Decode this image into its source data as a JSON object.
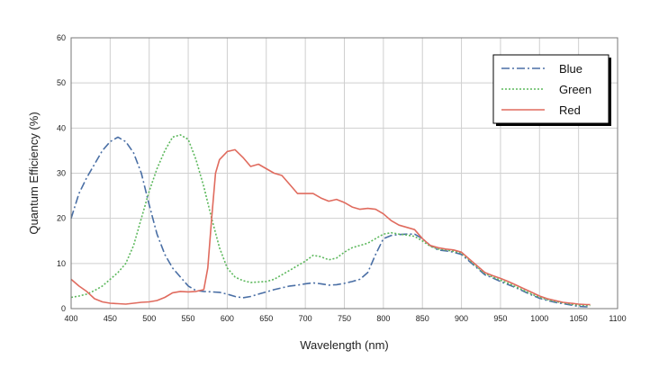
{
  "chart_data": {
    "type": "line",
    "title": "",
    "xlabel": "Wavelength (nm)",
    "ylabel": "Quantum Efficiency (%)",
    "xlim": [
      400,
      1100
    ],
    "ylim": [
      0,
      60
    ],
    "xticks": [
      400,
      450,
      500,
      550,
      600,
      650,
      700,
      750,
      800,
      850,
      900,
      950,
      1000,
      1050,
      1100
    ],
    "yticks": [
      0,
      10,
      20,
      30,
      40,
      50,
      60
    ],
    "grid": true,
    "legend_position": "top-right",
    "series": [
      {
        "name": "Blue",
        "color": "#4a6fa5",
        "line_style": "dash-dot",
        "points": [
          [
            400,
            20
          ],
          [
            410,
            25.5
          ],
          [
            420,
            29
          ],
          [
            430,
            32
          ],
          [
            440,
            35
          ],
          [
            450,
            37
          ],
          [
            460,
            38
          ],
          [
            470,
            37
          ],
          [
            480,
            34.5
          ],
          [
            490,
            30
          ],
          [
            500,
            23
          ],
          [
            510,
            16.5
          ],
          [
            520,
            12
          ],
          [
            530,
            9
          ],
          [
            540,
            7
          ],
          [
            550,
            5
          ],
          [
            560,
            4
          ],
          [
            570,
            3.8
          ],
          [
            580,
            3.7
          ],
          [
            590,
            3.6
          ],
          [
            600,
            3.2
          ],
          [
            610,
            2.7
          ],
          [
            620,
            2.4
          ],
          [
            630,
            2.7
          ],
          [
            640,
            3.2
          ],
          [
            650,
            3.7
          ],
          [
            660,
            4.2
          ],
          [
            670,
            4.6
          ],
          [
            680,
            5
          ],
          [
            690,
            5.2
          ],
          [
            700,
            5.5
          ],
          [
            710,
            5.7
          ],
          [
            720,
            5.5
          ],
          [
            730,
            5.2
          ],
          [
            740,
            5.3
          ],
          [
            750,
            5.6
          ],
          [
            760,
            6
          ],
          [
            770,
            6.5
          ],
          [
            780,
            8
          ],
          [
            790,
            12
          ],
          [
            800,
            15.5
          ],
          [
            810,
            16.2
          ],
          [
            820,
            16.4
          ],
          [
            830,
            16.5
          ],
          [
            840,
            16.5
          ],
          [
            850,
            15.5
          ],
          [
            860,
            14
          ],
          [
            870,
            13
          ],
          [
            880,
            12.8
          ],
          [
            890,
            12.5
          ],
          [
            900,
            12
          ],
          [
            910,
            10.5
          ],
          [
            920,
            9
          ],
          [
            930,
            7.5
          ],
          [
            940,
            6.8
          ],
          [
            950,
            6
          ],
          [
            960,
            5.3
          ],
          [
            970,
            4.6
          ],
          [
            980,
            3.8
          ],
          [
            990,
            3
          ],
          [
            1000,
            2.3
          ],
          [
            1010,
            1.8
          ],
          [
            1020,
            1.4
          ],
          [
            1030,
            1.1
          ],
          [
            1040,
            0.8
          ],
          [
            1050,
            0.5
          ],
          [
            1060,
            0.4
          ],
          [
            1065,
            0.4
          ]
        ]
      },
      {
        "name": "Green",
        "color": "#5cb85c",
        "line_style": "dotted",
        "points": [
          [
            400,
            2.5
          ],
          [
            410,
            2.8
          ],
          [
            420,
            3.2
          ],
          [
            430,
            4
          ],
          [
            440,
            5
          ],
          [
            450,
            6.5
          ],
          [
            460,
            8
          ],
          [
            470,
            10
          ],
          [
            480,
            14
          ],
          [
            490,
            20
          ],
          [
            500,
            26
          ],
          [
            510,
            31
          ],
          [
            520,
            35
          ],
          [
            530,
            38
          ],
          [
            540,
            38.5
          ],
          [
            550,
            37.5
          ],
          [
            560,
            33
          ],
          [
            570,
            27
          ],
          [
            580,
            20
          ],
          [
            590,
            13.5
          ],
          [
            600,
            9
          ],
          [
            610,
            7
          ],
          [
            620,
            6.2
          ],
          [
            630,
            5.8
          ],
          [
            640,
            5.9
          ],
          [
            650,
            6
          ],
          [
            660,
            6.5
          ],
          [
            670,
            7.5
          ],
          [
            680,
            8.5
          ],
          [
            690,
            9.5
          ],
          [
            700,
            10.5
          ],
          [
            710,
            11.8
          ],
          [
            720,
            11.5
          ],
          [
            730,
            10.8
          ],
          [
            740,
            11.2
          ],
          [
            750,
            12.5
          ],
          [
            760,
            13.5
          ],
          [
            770,
            14
          ],
          [
            780,
            14.5
          ],
          [
            790,
            15.5
          ],
          [
            800,
            16.5
          ],
          [
            810,
            16.8
          ],
          [
            820,
            16.5
          ],
          [
            830,
            16.3
          ],
          [
            840,
            16
          ],
          [
            850,
            15
          ],
          [
            860,
            13.8
          ],
          [
            870,
            13.2
          ],
          [
            880,
            13
          ],
          [
            890,
            12.7
          ],
          [
            900,
            12.3
          ],
          [
            910,
            10.8
          ],
          [
            920,
            9.2
          ],
          [
            930,
            7.8
          ],
          [
            940,
            7
          ],
          [
            950,
            6.3
          ],
          [
            960,
            5.6
          ],
          [
            970,
            4.8
          ],
          [
            980,
            4
          ],
          [
            990,
            3.2
          ],
          [
            1000,
            2.5
          ],
          [
            1010,
            2
          ],
          [
            1020,
            1.6
          ],
          [
            1030,
            1.3
          ],
          [
            1040,
            1
          ],
          [
            1050,
            0.8
          ],
          [
            1060,
            0.7
          ],
          [
            1065,
            0.7
          ]
        ]
      },
      {
        "name": "Red",
        "color": "#e06b5e",
        "line_style": "solid",
        "points": [
          [
            400,
            6.5
          ],
          [
            410,
            5
          ],
          [
            420,
            3.8
          ],
          [
            430,
            2.2
          ],
          [
            440,
            1.5
          ],
          [
            450,
            1.2
          ],
          [
            460,
            1.1
          ],
          [
            470,
            1
          ],
          [
            480,
            1.2
          ],
          [
            490,
            1.4
          ],
          [
            500,
            1.5
          ],
          [
            510,
            1.8
          ],
          [
            520,
            2.5
          ],
          [
            530,
            3.5
          ],
          [
            540,
            3.8
          ],
          [
            550,
            3.7
          ],
          [
            560,
            3.8
          ],
          [
            570,
            4.2
          ],
          [
            575,
            9
          ],
          [
            580,
            20
          ],
          [
            585,
            30
          ],
          [
            590,
            33
          ],
          [
            600,
            34.8
          ],
          [
            610,
            35.2
          ],
          [
            620,
            33.5
          ],
          [
            630,
            31.5
          ],
          [
            640,
            32
          ],
          [
            650,
            31
          ],
          [
            660,
            30
          ],
          [
            670,
            29.5
          ],
          [
            680,
            27.5
          ],
          [
            690,
            25.5
          ],
          [
            700,
            25.5
          ],
          [
            710,
            25.5
          ],
          [
            720,
            24.5
          ],
          [
            730,
            23.8
          ],
          [
            740,
            24.2
          ],
          [
            750,
            23.5
          ],
          [
            760,
            22.5
          ],
          [
            770,
            22
          ],
          [
            780,
            22.2
          ],
          [
            790,
            22
          ],
          [
            800,
            21
          ],
          [
            810,
            19.5
          ],
          [
            820,
            18.5
          ],
          [
            830,
            18
          ],
          [
            840,
            17.5
          ],
          [
            850,
            15.5
          ],
          [
            860,
            14
          ],
          [
            870,
            13.5
          ],
          [
            880,
            13.2
          ],
          [
            890,
            13
          ],
          [
            900,
            12.5
          ],
          [
            910,
            11
          ],
          [
            920,
            9.5
          ],
          [
            930,
            8
          ],
          [
            940,
            7.3
          ],
          [
            950,
            6.7
          ],
          [
            960,
            6
          ],
          [
            970,
            5.2
          ],
          [
            980,
            4.4
          ],
          [
            990,
            3.6
          ],
          [
            1000,
            2.8
          ],
          [
            1010,
            2.2
          ],
          [
            1020,
            1.8
          ],
          [
            1030,
            1.4
          ],
          [
            1040,
            1.2
          ],
          [
            1050,
            1
          ],
          [
            1060,
            0.9
          ],
          [
            1065,
            0.9
          ]
        ]
      }
    ]
  }
}
